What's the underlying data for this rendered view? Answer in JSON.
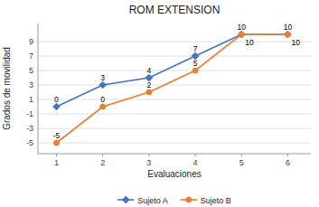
{
  "chart_data": {
    "type": "line",
    "title": "ROM EXTENSION",
    "x_label": "Evaluaciones",
    "y_label": "Grados de movilidad",
    "x": [
      1,
      2,
      3,
      4,
      5,
      6
    ],
    "series": [
      {
        "name": "Sujeto A",
        "color": "#4472C4",
        "marker": "diamond",
        "values": [
          0,
          3,
          4,
          7,
          10,
          10
        ]
      },
      {
        "name": "Sujeto B",
        "color": "#ED7D31",
        "marker": "circle",
        "values": [
          -5,
          0,
          2,
          5,
          10,
          10
        ]
      }
    ],
    "xlim": [
      0.6,
      6.5
    ],
    "ylim": [
      -6.5,
      11.5
    ],
    "xticks": [
      1,
      2,
      3,
      4,
      5,
      6
    ],
    "yticks": [
      -5,
      -3,
      -1,
      1,
      3,
      5,
      7,
      9
    ],
    "grid": true,
    "data_labels": true,
    "legend": "bottom"
  }
}
